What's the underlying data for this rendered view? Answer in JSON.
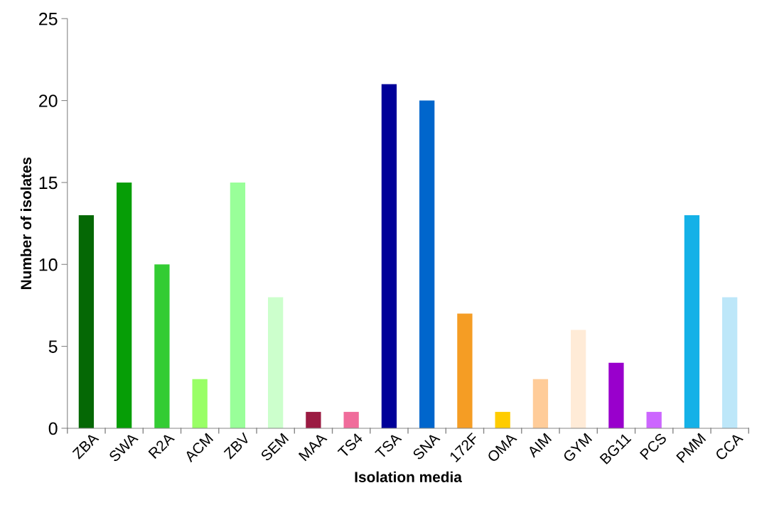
{
  "chart_data": {
    "type": "bar",
    "xlabel": "Isolation media",
    "ylabel": "Number of isolates",
    "categories": [
      "ZBA",
      "SWA",
      "R2A",
      "ACM",
      "ZBV",
      "SEM",
      "MAA",
      "TS4",
      "TSA",
      "SNA",
      "172F",
      "OMA",
      "AIM",
      "GYM",
      "BG11",
      "PCS",
      "PMM",
      "CCA"
    ],
    "values": [
      13,
      15,
      10,
      3,
      15,
      8,
      1,
      1,
      21,
      20,
      7,
      1,
      3,
      6,
      4,
      1,
      13,
      8
    ],
    "colors": [
      "#056805",
      "#069e06",
      "#33cc33",
      "#99ff66",
      "#99ff99",
      "#ccffcc",
      "#9b1b42",
      "#f06c9b",
      "#000099",
      "#0066cc",
      "#f59d24",
      "#ffcc00",
      "#ffcc99",
      "#ffebd7",
      "#9900cc",
      "#cc66ff",
      "#14b1e7",
      "#bde7f9"
    ],
    "ylim": [
      0,
      25
    ],
    "yticks": [
      0,
      5,
      10,
      15,
      20,
      25
    ],
    "grid": false,
    "legend": false
  }
}
